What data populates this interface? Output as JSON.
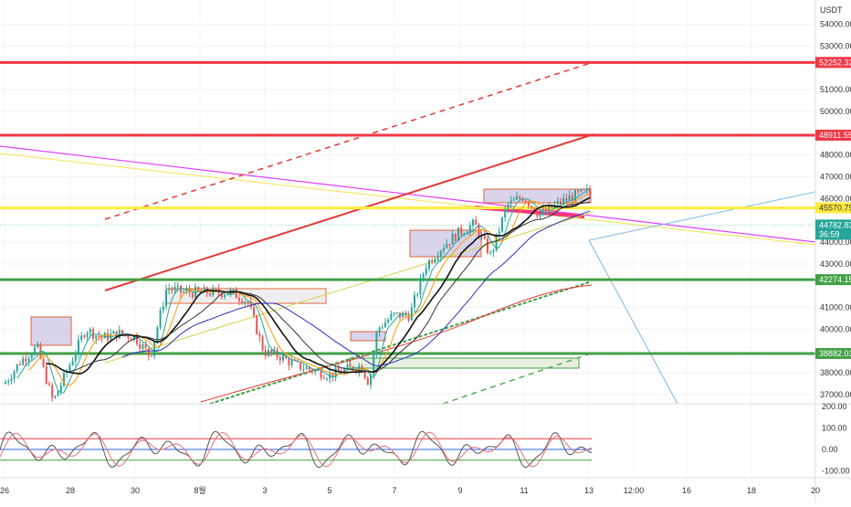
{
  "chart_data": {
    "type": "candlestick",
    "currency": "USDT",
    "y_axis": {
      "range": [
        36600,
        55000
      ],
      "ticks": [
        "54000.00",
        "53000.00",
        "51000.00",
        "50000.00",
        "48000.00",
        "47000.00",
        "46000.00",
        "44000.00",
        "43000.00",
        "41000.00",
        "40000.00",
        "38000.00",
        "37000.00"
      ],
      "tick_values": [
        54000,
        53000,
        51000,
        50000,
        48000,
        47000,
        46000,
        44000,
        43000,
        41000,
        40000,
        38000,
        37000
      ]
    },
    "x_axis": {
      "ticks": [
        "26",
        "28",
        "30",
        "8월",
        "3",
        "5",
        "7",
        "9",
        "11",
        "13",
        "12:00",
        "16",
        "18",
        "20"
      ]
    },
    "price_path": [
      [
        "07-26 00:00",
        37490
      ],
      [
        "07-26 12:00",
        38540
      ],
      [
        "07-27 00:00",
        39170
      ],
      [
        "07-27 12:00",
        36650
      ],
      [
        "07-28 00:00",
        38330
      ],
      [
        "07-28 12:00",
        40010
      ],
      [
        "07-29 00:00",
        39590
      ],
      [
        "07-29 12:00",
        39800
      ],
      [
        "07-30 00:00",
        39670
      ],
      [
        "07-30 12:00",
        38750
      ],
      [
        "07-31 00:00",
        41900
      ],
      [
        "07-31 12:00",
        41690
      ],
      [
        "08-01 00:00",
        41690
      ],
      [
        "08-01 12:00",
        41270
      ],
      [
        "08-02 00:00",
        38960
      ],
      [
        "08-02 12:00",
        38750
      ],
      [
        "08-03 00:00",
        38330
      ],
      [
        "08-03 12:00",
        38120
      ],
      [
        "08-04 00:00",
        37910
      ],
      [
        "08-04 12:00",
        38120
      ],
      [
        "08-05 00:00",
        38330
      ],
      [
        "08-05 06:00",
        37490
      ],
      [
        "08-05 12:00",
        40010
      ],
      [
        "08-06 00:00",
        40640
      ],
      [
        "08-06 12:00",
        40640
      ],
      [
        "08-07 00:00",
        42950
      ],
      [
        "08-07 12:00",
        43790
      ],
      [
        "08-08 00:00",
        44420
      ],
      [
        "08-08 12:00",
        44840
      ],
      [
        "08-09 00:00",
        43370
      ],
      [
        "08-09 12:00",
        45680
      ],
      [
        "08-10 00:00",
        46100
      ],
      [
        "08-10 12:00",
        45260
      ],
      [
        "08-11 00:00",
        45680
      ],
      [
        "08-11 12:00",
        46100
      ],
      [
        "08-12 00:00",
        46310
      ],
      [
        "08-12 12:00",
        45050
      ],
      [
        "08-13 00:00",
        44130
      ],
      [
        "08-13 03:00",
        44782.83
      ]
    ],
    "horizontal_levels": [
      {
        "price": 52252.32,
        "label": "52252.32",
        "color": "#f23645"
      },
      {
        "price": 48911.55,
        "label": "48911.55",
        "color": "#f23645"
      },
      {
        "price": 45570.79,
        "label": "45570.79",
        "color": "#ffeb3b"
      },
      {
        "price": 42274.15,
        "label": "42274.15",
        "color": "#43a047"
      },
      {
        "price": 38882.03,
        "label": "38882.03",
        "color": "#43a047"
      }
    ],
    "last_price": {
      "label": "44782.83",
      "countdown": "36:59",
      "color": "#26a69a"
    },
    "oscillator": {
      "ticks": [
        "200.00",
        "100.00",
        "0.00",
        "-100.00"
      ],
      "tick_values": [
        200,
        100,
        0,
        -100
      ],
      "range": [
        -150,
        210
      ],
      "bands": [
        {
          "value": 50,
          "color": "#f23645"
        },
        {
          "value": 0,
          "color": "#2962ff"
        },
        {
          "value": -50,
          "color": "#43a047"
        }
      ]
    },
    "colors": {
      "up": "#26a69a",
      "down": "#ef5350"
    },
    "grid": true
  }
}
